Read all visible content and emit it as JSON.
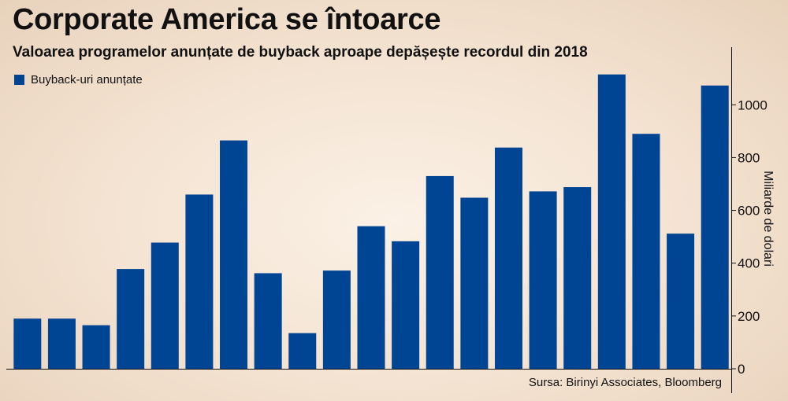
{
  "title": "Corporate America se întoarce",
  "subtitle": "Valoarea programelor anunțate de buyback aproape depășește recordul din 2018",
  "legend_label": "Buyback-uri anunțate",
  "source": "Sursa: Birinyi Associates, Bloomberg",
  "colors": {
    "bar": "#004494",
    "axis": "#111111"
  },
  "chart_data": {
    "type": "bar",
    "series": [
      {
        "name": "Buyback-uri anunțate",
        "values": [
          190,
          190,
          165,
          378,
          478,
          660,
          865,
          362,
          135,
          372,
          540,
          483,
          730,
          648,
          838,
          672,
          688,
          1115,
          890,
          512,
          1073
        ]
      }
    ],
    "ylabel": "Miliarde de dolari",
    "ylim": [
      0,
      1120
    ],
    "yticks": [
      0,
      200,
      400,
      600,
      800,
      1000
    ],
    "grid": false,
    "legend": "top-left",
    "yaxis_position": "right"
  }
}
